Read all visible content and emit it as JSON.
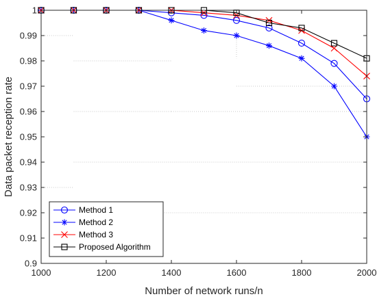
{
  "chart_data": {
    "type": "line",
    "title": "",
    "xlabel": "Number of network runs/n",
    "ylabel": "Data packet reception rate",
    "xlim": [
      1000,
      2000
    ],
    "ylim": [
      0.9,
      1.0
    ],
    "xticks": [
      1000,
      1200,
      1400,
      1600,
      1800,
      2000
    ],
    "yticks": [
      0.9,
      0.91,
      0.92,
      0.93,
      0.94,
      0.95,
      0.96,
      0.97,
      0.98,
      0.99,
      1
    ],
    "xtick_labels": [
      "1000",
      "1200",
      "1400",
      "1600",
      "1800",
      "2000"
    ],
    "ytick_labels": [
      "0.9",
      "0.91",
      "0.92",
      "0.93",
      "0.94",
      "0.95",
      "0.96",
      "0.97",
      "0.98",
      "0.99",
      "1"
    ],
    "grid": false,
    "legend_position": "bottom-left",
    "x": [
      1000,
      1100,
      1200,
      1300,
      1400,
      1500,
      1600,
      1700,
      1800,
      1900,
      2000
    ],
    "series": [
      {
        "name": "Method 1",
        "color": "#0000ff",
        "marker": "circle",
        "values": [
          1,
          1,
          1,
          1,
          0.999,
          0.998,
          0.996,
          0.993,
          0.987,
          0.979,
          0.965
        ]
      },
      {
        "name": "Method 2",
        "color": "#0000ff",
        "marker": "asterisk",
        "values": [
          1,
          1,
          1,
          1,
          0.996,
          0.992,
          0.99,
          0.986,
          0.981,
          0.97,
          0.95
        ]
      },
      {
        "name": "Method 3",
        "color": "#ff0000",
        "marker": "x",
        "values": [
          1,
          1,
          1,
          1,
          1,
          0.999,
          0.998,
          0.996,
          0.992,
          0.985,
          0.974
        ]
      },
      {
        "name": "Proposed Algorithm",
        "color": "#000000",
        "marker": "square",
        "values": [
          1,
          1,
          1,
          1,
          1,
          1,
          0.999,
          0.995,
          0.993,
          0.987,
          0.981
        ]
      }
    ]
  }
}
